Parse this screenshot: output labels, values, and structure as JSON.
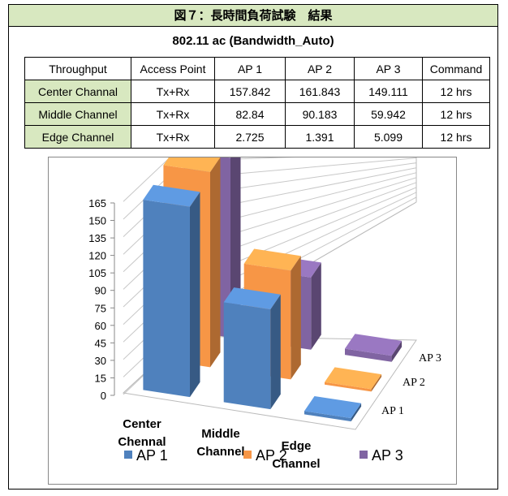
{
  "figure_title": "図７：長時間負荷試験　結果",
  "subtitle": "802.11 ac (Bandwidth_Auto)",
  "table": {
    "headers": [
      "Throughput",
      "Access Point",
      "AP 1",
      "AP 2",
      "AP 3",
      "Command"
    ],
    "rows": [
      {
        "label": "Center Channal",
        "cells": [
          "Tx+Rx",
          "157.842",
          "161.843",
          "149.111",
          "12 hrs"
        ]
      },
      {
        "label": "Middle Channel",
        "cells": [
          "Tx+Rx",
          "82.84",
          "90.183",
          "59.942",
          "12 hrs"
        ]
      },
      {
        "label": "Edge Channel",
        "cells": [
          "Tx+Rx",
          "2.725",
          "1.391",
          "5.099",
          "12 hrs"
        ]
      }
    ]
  },
  "chart_data": {
    "type": "bar",
    "style": "3d-column",
    "categories": [
      [
        "Center",
        "Chennal"
      ],
      [
        "Middle",
        "Channel"
      ],
      [
        "Edge",
        "Channel"
      ]
    ],
    "series": [
      {
        "name": "AP 1",
        "color": "#4f81bd",
        "values": [
          157.842,
          82.84,
          2.725
        ]
      },
      {
        "name": "AP 2",
        "color": "#f79646",
        "values": [
          161.843,
          90.183,
          1.391
        ]
      },
      {
        "name": "AP 3",
        "color": "#8064a2",
        "values": [
          149.111,
          59.942,
          5.099
        ]
      }
    ],
    "depth_labels": [
      "AP 1",
      "AP 2",
      "AP 3"
    ],
    "yticks": [
      "0",
      "15",
      "30",
      "45",
      "60",
      "75",
      "90",
      "105",
      "120",
      "135",
      "150",
      "165"
    ],
    "ylim": [
      0,
      165
    ],
    "grid": true,
    "legend": "bottom"
  }
}
